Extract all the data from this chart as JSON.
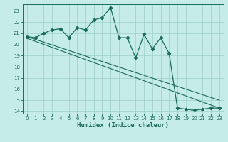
{
  "xlabel": "Humidex (Indice chaleur)",
  "bg_color": "#c5ece8",
  "grid_color": "#9ecfca",
  "line_color": "#1a6b5a",
  "xlim": [
    -0.5,
    23.5
  ],
  "ylim": [
    13.8,
    23.6
  ],
  "yticks": [
    14,
    15,
    16,
    17,
    18,
    19,
    20,
    21,
    22,
    23
  ],
  "xticks": [
    0,
    1,
    2,
    3,
    4,
    5,
    6,
    7,
    8,
    9,
    10,
    11,
    12,
    13,
    14,
    15,
    16,
    17,
    18,
    19,
    20,
    21,
    22,
    23
  ],
  "series1_x": [
    0,
    1,
    2,
    3,
    4,
    5,
    6,
    7,
    8,
    9,
    10,
    11,
    12,
    13,
    14,
    15,
    16,
    17,
    18,
    19,
    20,
    21,
    22,
    23
  ],
  "series1_y": [
    20.7,
    20.6,
    21.0,
    21.3,
    21.4,
    20.6,
    21.5,
    21.3,
    22.2,
    22.4,
    23.3,
    20.6,
    20.6,
    18.8,
    20.9,
    19.6,
    20.6,
    19.2,
    14.3,
    14.2,
    14.1,
    14.2,
    14.3,
    14.3
  ],
  "line2_x": [
    0,
    23
  ],
  "line2_y": [
    20.7,
    15.0
  ],
  "line3_x": [
    0,
    23
  ],
  "line3_y": [
    20.55,
    14.3
  ]
}
